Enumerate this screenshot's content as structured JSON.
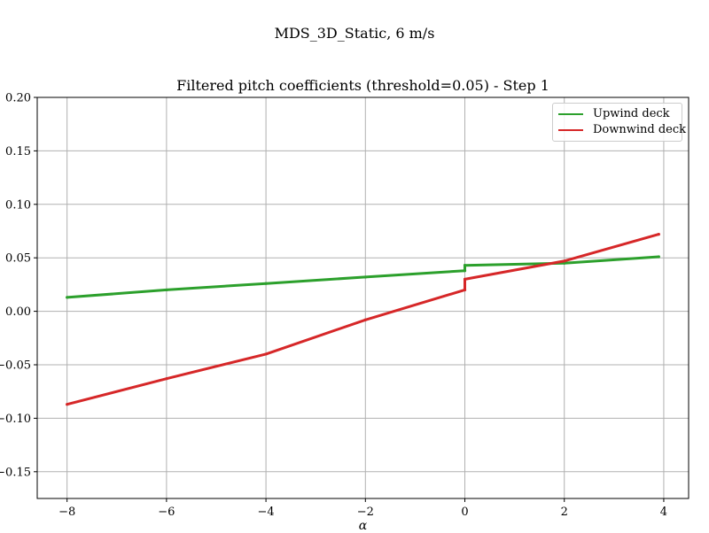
{
  "figure": {
    "suptitle": "MDS_3D_Static, 6 m/s"
  },
  "chart_data": {
    "type": "line",
    "title": "Filtered pitch coefficients (threshold=0.05) - Step 1",
    "xlabel": "α",
    "ylabel": "",
    "xlim": [
      -8.6,
      4.5
    ],
    "ylim": [
      -0.175,
      0.2
    ],
    "xticks": [
      -8,
      -6,
      -4,
      -2,
      0,
      2,
      4
    ],
    "xtick_labels": [
      "−8",
      "−6",
      "−4",
      "−2",
      "0",
      "2",
      "4"
    ],
    "yticks": [
      -0.15,
      -0.1,
      -0.05,
      0.0,
      0.05,
      0.1,
      0.15,
      0.2
    ],
    "ytick_labels": [
      "−0.15",
      "−0.10",
      "−0.05",
      "0.00",
      "0.05",
      "0.10",
      "0.15",
      "0.20"
    ],
    "grid": true,
    "legend_position": "top-right",
    "series": [
      {
        "name": "Upwind deck",
        "color": "#2ca02c",
        "x": [
          -8.0,
          -6.0,
          -4.0,
          -2.0,
          0.0,
          0.0,
          2.0,
          3.9
        ],
        "y": [
          0.013,
          0.02,
          0.026,
          0.032,
          0.038,
          0.043,
          0.045,
          0.051
        ]
      },
      {
        "name": "Downwind deck",
        "color": "#d62728",
        "x": [
          -8.0,
          -6.0,
          -4.0,
          -2.0,
          0.0,
          0.0,
          2.0,
          3.9
        ],
        "y": [
          -0.087,
          -0.063,
          -0.04,
          -0.008,
          0.02,
          0.03,
          0.047,
          0.072
        ]
      }
    ]
  },
  "legend": {
    "items": [
      {
        "label": "Upwind deck",
        "color": "#2ca02c"
      },
      {
        "label": "Downwind deck",
        "color": "#d62728"
      }
    ]
  }
}
